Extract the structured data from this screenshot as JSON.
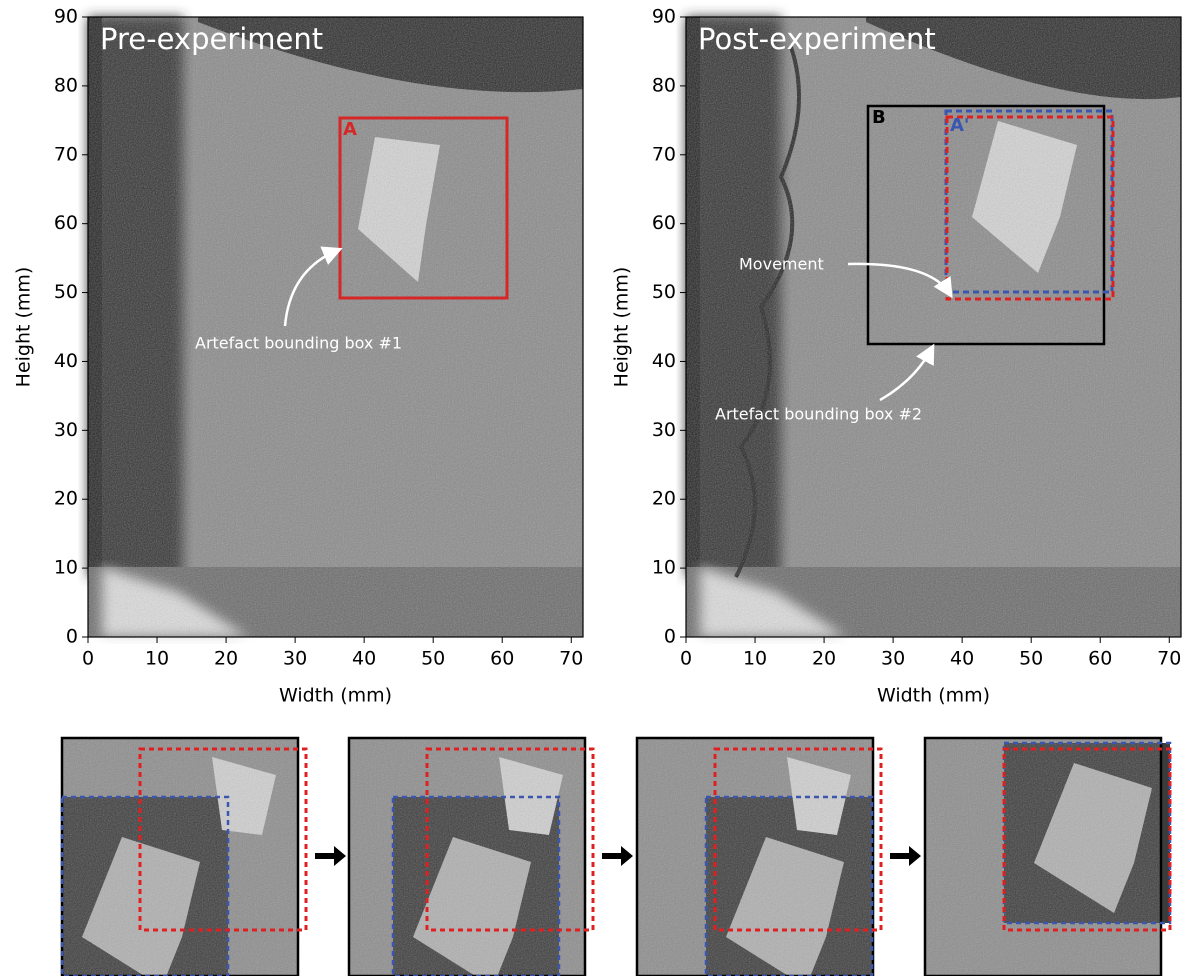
{
  "chart_data": [
    {
      "type": "image",
      "title": "Pre-experiment",
      "xlabel": "Width (mm)",
      "ylabel": "Height (mm)",
      "xlim": [
        0,
        71.7
      ],
      "ylim": [
        0,
        90
      ],
      "xticks": [
        0,
        10,
        20,
        30,
        40,
        50,
        60,
        70
      ],
      "yticks": [
        0,
        10,
        20,
        30,
        40,
        50,
        60,
        70,
        80,
        90
      ],
      "annotations": [
        "A",
        "Artefact bounding box #1"
      ]
    },
    {
      "type": "image",
      "title": "Post-experiment",
      "xlabel": "Width (mm)",
      "ylabel": "Height (mm)",
      "xlim": [
        0,
        71.7
      ],
      "ylim": [
        0,
        90
      ],
      "xticks": [
        0,
        10,
        20,
        30,
        40,
        50,
        60,
        70
      ],
      "yticks": [
        0,
        10,
        20,
        30,
        40,
        50,
        60,
        70,
        80,
        90
      ],
      "annotations": [
        "B",
        "A'",
        "Movement",
        "Artefact bounding box #2"
      ]
    }
  ]
}
